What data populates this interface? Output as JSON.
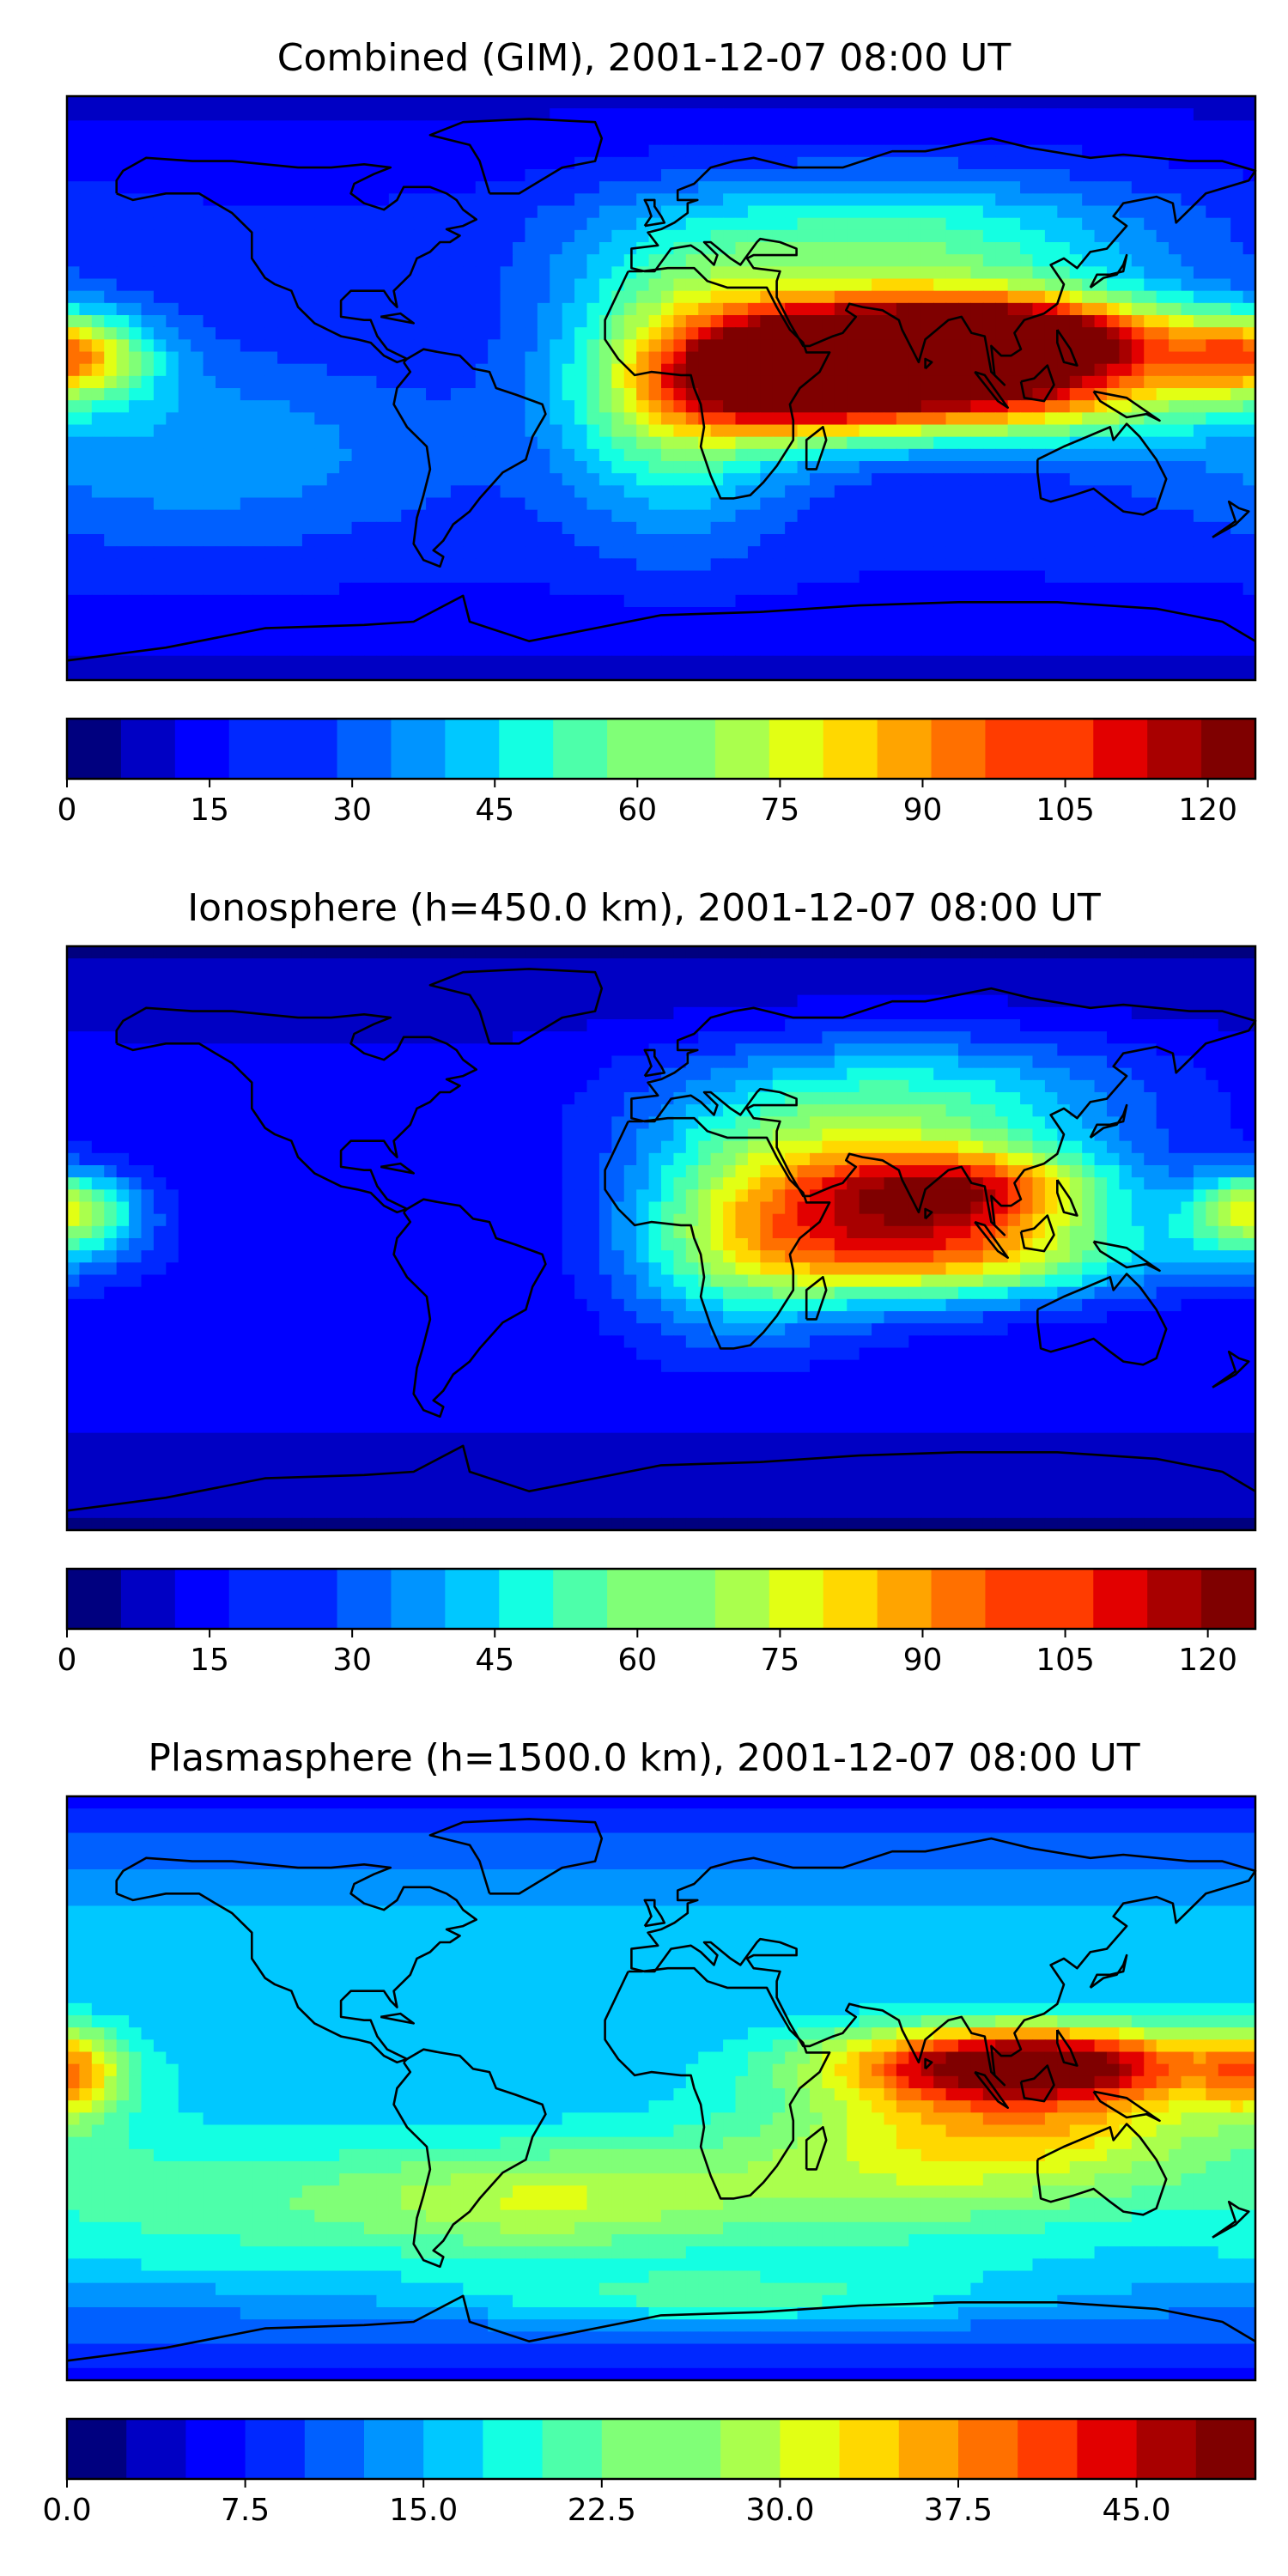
{
  "colormap": [
    "#00007f",
    "#0000c4",
    "#0000ff",
    "#0028ff",
    "#0060ff",
    "#0094ff",
    "#00c8ff",
    "#14ffe2",
    "#4dffaa",
    "#80ff77",
    "#aaff4d",
    "#e2ff14",
    "#ffd800",
    "#ffa400",
    "#ff7000",
    "#ff3c00",
    "#e20000",
    "#a80000",
    "#7f0000"
  ],
  "coastline_color": "#000000",
  "chart_data": [
    {
      "type": "heatmap",
      "title": "Combined (GIM), 2001-12-07 08:00 UT",
      "colorbar": {
        "min": 0,
        "max": 125,
        "ticks": [
          0,
          15,
          30,
          45,
          60,
          75,
          90,
          105,
          120
        ],
        "tick_labels": [
          "0",
          "15",
          "30",
          "45",
          "60",
          "75",
          "90",
          "105",
          "120"
        ],
        "levels": 22
      },
      "hotspots": [
        {
          "lon": 100,
          "lat": 16,
          "value": 125,
          "spread_lon": 38,
          "spread_lat": 9
        },
        {
          "lon": 90,
          "lat": 0,
          "value": 110,
          "spread_lon": 48,
          "spread_lat": 11
        },
        {
          "lon": 40,
          "lat": 6,
          "value": 92,
          "spread_lon": 25,
          "spread_lat": 13
        },
        {
          "lon": 5,
          "lat": 0,
          "value": 65,
          "spread_lon": 25,
          "spread_lat": 28
        },
        {
          "lon": 70,
          "lat": 40,
          "value": 60,
          "spread_lon": 55,
          "spread_lat": 18
        },
        {
          "lon": -180,
          "lat": 10,
          "value": 75,
          "spread_lon": 18,
          "spread_lat": 9
        },
        {
          "lon": -140,
          "lat": -20,
          "value": 38,
          "spread_lon": 55,
          "spread_lat": 20
        }
      ],
      "background_value": 20
    },
    {
      "type": "heatmap",
      "title": "Ionosphere  (h=450.0 km), 2001-12-07 08:00 UT",
      "colorbar": {
        "min": 0,
        "max": 125,
        "ticks": [
          0,
          15,
          30,
          45,
          60,
          75,
          90,
          105,
          120
        ],
        "tick_labels": [
          "0",
          "15",
          "30",
          "45",
          "60",
          "75",
          "90",
          "105",
          "120"
        ],
        "levels": 22
      },
      "hotspots": [
        {
          "lon": 95,
          "lat": 15,
          "value": 82,
          "spread_lon": 30,
          "spread_lat": 9
        },
        {
          "lon": 95,
          "lat": -5,
          "value": 72,
          "spread_lon": 38,
          "spread_lat": 10
        },
        {
          "lon": 55,
          "lat": 8,
          "value": 62,
          "spread_lon": 30,
          "spread_lat": 18
        },
        {
          "lon": 20,
          "lat": 0,
          "value": 50,
          "spread_lon": 25,
          "spread_lat": 22
        },
        {
          "lon": 75,
          "lat": 40,
          "value": 52,
          "spread_lon": 50,
          "spread_lat": 16
        },
        {
          "lon": -180,
          "lat": 10,
          "value": 60,
          "spread_lon": 14,
          "spread_lat": 8
        },
        {
          "lon": 180,
          "lat": 0,
          "value": 35,
          "spread_lon": 20,
          "spread_lat": 10
        }
      ],
      "background_value": 14
    },
    {
      "type": "heatmap",
      "title": "Plasmasphere (h=1500.0 km), 2001-12-07 08:00 UT",
      "colorbar": {
        "min": 0,
        "max": 50,
        "ticks": [
          0,
          7.5,
          15,
          22.5,
          30,
          37.5,
          45
        ],
        "tick_labels": [
          "0.0",
          "7.5",
          "15.0",
          "22.5",
          "30.0",
          "37.5",
          "45.0"
        ],
        "levels": 20
      },
      "hotspots": [
        {
          "lon": 110,
          "lat": 8,
          "value": 46,
          "spread_lon": 40,
          "spread_lat": 8
        },
        {
          "lon": 110,
          "lat": -8,
          "value": 32,
          "spread_lon": 45,
          "spread_lat": 14
        },
        {
          "lon": -180,
          "lat": 5,
          "value": 30,
          "spread_lon": 12,
          "spread_lat": 10
        },
        {
          "lon": -40,
          "lat": -35,
          "value": 26,
          "spread_lon": 40,
          "spread_lat": 12
        },
        {
          "lon": 60,
          "lat": -30,
          "value": 25,
          "spread_lon": 60,
          "spread_lat": 15
        },
        {
          "lon": -130,
          "lat": -35,
          "value": 22,
          "spread_lon": 50,
          "spread_lat": 15
        },
        {
          "lon": 20,
          "lat": -65,
          "value": 24,
          "spread_lon": 60,
          "spread_lat": 6
        }
      ],
      "background_value": 16
    }
  ],
  "coastlines": [
    [
      [
        -165,
        60
      ],
      [
        -160,
        58
      ],
      [
        -150,
        60
      ],
      [
        -140,
        60
      ],
      [
        -135,
        57
      ],
      [
        -130,
        54
      ],
      [
        -124,
        48
      ],
      [
        -124,
        40
      ],
      [
        -120,
        34
      ],
      [
        -117,
        32
      ],
      [
        -112,
        30
      ],
      [
        -110,
        25
      ],
      [
        -105,
        20
      ],
      [
        -97,
        16
      ],
      [
        -92,
        15
      ],
      [
        -88,
        14
      ],
      [
        -84,
        10
      ],
      [
        -80,
        8
      ],
      [
        -77,
        9
      ],
      [
        -79,
        10
      ],
      [
        -83,
        12
      ],
      [
        -86,
        16
      ],
      [
        -88,
        21
      ],
      [
        -90,
        21
      ],
      [
        -97,
        22
      ],
      [
        -97,
        27
      ],
      [
        -94,
        30
      ],
      [
        -89,
        30
      ],
      [
        -84,
        30
      ],
      [
        -82,
        27
      ],
      [
        -80,
        25
      ],
      [
        -81,
        30
      ],
      [
        -76,
        35
      ],
      [
        -74,
        40
      ],
      [
        -70,
        42
      ],
      [
        -67,
        45
      ],
      [
        -64,
        45
      ],
      [
        -61,
        47
      ],
      [
        -65,
        49
      ],
      [
        -60,
        50
      ],
      [
        -56,
        52
      ],
      [
        -60,
        55
      ],
      [
        -62,
        58
      ],
      [
        -65,
        60
      ],
      [
        -70,
        62
      ],
      [
        -78,
        62
      ],
      [
        -80,
        58
      ],
      [
        -84,
        55
      ],
      [
        -90,
        57
      ],
      [
        -94,
        60
      ],
      [
        -93,
        63
      ],
      [
        -87,
        66
      ],
      [
        -82,
        68
      ],
      [
        -90,
        69
      ],
      [
        -100,
        68
      ],
      [
        -110,
        68
      ],
      [
        -120,
        69
      ],
      [
        -130,
        70
      ],
      [
        -142,
        70
      ],
      [
        -156,
        71
      ],
      [
        -163,
        67
      ],
      [
        -165,
        64
      ],
      [
        -165,
        60
      ]
    ],
    [
      [
        -78,
        8
      ],
      [
        -76,
        5
      ],
      [
        -80,
        0
      ],
      [
        -81,
        -5
      ],
      [
        -77,
        -12
      ],
      [
        -71,
        -18
      ],
      [
        -70,
        -25
      ],
      [
        -72,
        -33
      ],
      [
        -74,
        -40
      ],
      [
        -75,
        -48
      ],
      [
        -72,
        -53
      ],
      [
        -67,
        -55
      ],
      [
        -66,
        -52
      ],
      [
        -69,
        -50
      ],
      [
        -66,
        -47
      ],
      [
        -63,
        -42
      ],
      [
        -58,
        -38
      ],
      [
        -55,
        -34
      ],
      [
        -48,
        -26
      ],
      [
        -41,
        -22
      ],
      [
        -39,
        -15
      ],
      [
        -35,
        -8
      ],
      [
        -36,
        -5
      ],
      [
        -44,
        -2
      ],
      [
        -50,
        0
      ],
      [
        -52,
        5
      ],
      [
        -57,
        6
      ],
      [
        -61,
        10
      ],
      [
        -67,
        11
      ],
      [
        -72,
        12
      ],
      [
        -77,
        9
      ],
      [
        -78,
        8
      ]
    ],
    [
      [
        -10,
        36
      ],
      [
        -17,
        21
      ],
      [
        -17,
        15
      ],
      [
        -13,
        9
      ],
      [
        -8,
        4
      ],
      [
        -3,
        5
      ],
      [
        6,
        4
      ],
      [
        9,
        4
      ],
      [
        10,
        0
      ],
      [
        12,
        -5
      ],
      [
        13,
        -12
      ],
      [
        12,
        -18
      ],
      [
        15,
        -27
      ],
      [
        18,
        -34
      ],
      [
        22,
        -34
      ],
      [
        27,
        -33
      ],
      [
        31,
        -29
      ],
      [
        35,
        -24
      ],
      [
        40,
        -16
      ],
      [
        40,
        -10
      ],
      [
        39,
        -5
      ],
      [
        42,
        0
      ],
      [
        48,
        5
      ],
      [
        51,
        11
      ],
      [
        44,
        11
      ],
      [
        43,
        14
      ],
      [
        39,
        18
      ],
      [
        35,
        25
      ],
      [
        32,
        31
      ],
      [
        28,
        31
      ],
      [
        20,
        31
      ],
      [
        14,
        33
      ],
      [
        10,
        37
      ],
      [
        2,
        37
      ],
      [
        -6,
        36
      ],
      [
        -10,
        36
      ]
    ],
    [
      [
        -9,
        39
      ],
      [
        -9,
        43
      ],
      [
        -1,
        44
      ],
      [
        -4,
        48
      ],
      [
        0,
        49
      ],
      [
        4,
        51
      ],
      [
        8,
        54
      ],
      [
        8,
        57
      ],
      [
        11,
        58
      ],
      [
        5,
        58
      ],
      [
        5,
        61
      ],
      [
        10,
        63
      ],
      [
        15,
        68
      ],
      [
        22,
        70
      ],
      [
        28,
        71
      ],
      [
        40,
        68
      ],
      [
        44,
        68
      ],
      [
        55,
        68
      ],
      [
        70,
        73
      ],
      [
        80,
        73
      ],
      [
        100,
        77
      ],
      [
        112,
        74
      ],
      [
        130,
        71
      ],
      [
        140,
        72
      ],
      [
        160,
        70
      ],
      [
        170,
        70
      ],
      [
        180,
        67
      ],
      [
        178,
        64
      ],
      [
        165,
        60
      ],
      [
        160,
        55
      ],
      [
        156,
        51
      ],
      [
        155,
        57
      ],
      [
        150,
        59
      ],
      [
        140,
        57
      ],
      [
        137,
        53
      ],
      [
        141,
        50
      ],
      [
        135,
        43
      ],
      [
        130,
        42
      ],
      [
        126,
        37
      ],
      [
        122,
        40
      ],
      [
        118,
        38
      ],
      [
        122,
        32
      ],
      [
        120,
        26
      ],
      [
        116,
        23
      ],
      [
        110,
        21
      ],
      [
        107,
        17
      ],
      [
        109,
        12
      ],
      [
        106,
        10
      ],
      [
        103,
        10
      ],
      [
        100,
        13
      ],
      [
        101,
        4
      ],
      [
        104,
        1
      ],
      [
        100,
        5
      ],
      [
        98,
        16
      ],
      [
        94,
        17
      ],
      [
        91,
        22
      ],
      [
        87,
        21
      ],
      [
        80,
        15
      ],
      [
        78,
        8
      ],
      [
        73,
        18
      ],
      [
        72,
        21
      ],
      [
        67,
        24
      ],
      [
        61,
        25
      ],
      [
        57,
        26
      ],
      [
        56,
        24
      ],
      [
        59,
        22
      ],
      [
        55,
        17
      ],
      [
        52,
        16
      ],
      [
        45,
        13
      ],
      [
        43,
        13
      ],
      [
        39,
        20
      ],
      [
        35,
        28
      ],
      [
        35,
        33
      ],
      [
        36,
        36
      ],
      [
        28,
        37
      ],
      [
        26,
        40
      ],
      [
        28,
        41
      ],
      [
        29,
        41
      ],
      [
        41,
        41
      ],
      [
        41,
        43
      ],
      [
        36,
        45
      ],
      [
        30,
        46
      ],
      [
        29,
        45
      ],
      [
        24,
        38
      ],
      [
        21,
        40
      ],
      [
        15,
        45
      ],
      [
        13,
        45
      ],
      [
        17,
        41
      ],
      [
        16,
        38
      ],
      [
        12,
        42
      ],
      [
        9,
        44
      ],
      [
        3,
        43
      ],
      [
        -2,
        36
      ],
      [
        -5,
        36
      ],
      [
        -9,
        37
      ],
      [
        -9,
        39
      ]
    ],
    [
      [
        114,
        -22
      ],
      [
        122,
        -18
      ],
      [
        129,
        -15
      ],
      [
        136,
        -12
      ],
      [
        137,
        -16
      ],
      [
        141,
        -11
      ],
      [
        145,
        -15
      ],
      [
        150,
        -22
      ],
      [
        153,
        -28
      ],
      [
        150,
        -37
      ],
      [
        146,
        -39
      ],
      [
        140,
        -38
      ],
      [
        136,
        -35
      ],
      [
        131,
        -31
      ],
      [
        125,
        -33
      ],
      [
        118,
        -35
      ],
      [
        115,
        -34
      ],
      [
        114,
        -26
      ],
      [
        114,
        -22
      ]
    ],
    [
      [
        -5,
        50
      ],
      [
        -3,
        53
      ],
      [
        -4,
        56
      ],
      [
        -5,
        58
      ],
      [
        -2,
        58
      ],
      [
        -2,
        56
      ],
      [
        0,
        53
      ],
      [
        1,
        51
      ],
      [
        -5,
        50
      ]
    ],
    [
      [
        -52,
        60
      ],
      [
        -43,
        60
      ],
      [
        -30,
        68
      ],
      [
        -20,
        70
      ],
      [
        -18,
        77
      ],
      [
        -20,
        82
      ],
      [
        -40,
        83
      ],
      [
        -60,
        82
      ],
      [
        -70,
        78
      ],
      [
        -58,
        75
      ],
      [
        -55,
        70
      ],
      [
        -52,
        60
      ]
    ],
    [
      [
        95,
        5
      ],
      [
        98,
        4
      ],
      [
        105,
        -6
      ],
      [
        102,
        -4
      ],
      [
        95,
        5
      ]
    ],
    [
      [
        109,
        2
      ],
      [
        110,
        -3
      ],
      [
        116,
        -4
      ],
      [
        119,
        1
      ],
      [
        117,
        7
      ],
      [
        113,
        3
      ],
      [
        109,
        2
      ]
    ],
    [
      [
        131,
        -1
      ],
      [
        141,
        -3
      ],
      [
        151,
        -10
      ],
      [
        147,
        -8
      ],
      [
        141,
        -9
      ],
      [
        133,
        -4
      ],
      [
        131,
        -1
      ]
    ],
    [
      [
        130,
        31
      ],
      [
        132,
        35
      ],
      [
        136,
        35
      ],
      [
        140,
        36
      ],
      [
        141,
        41
      ],
      [
        140,
        38
      ],
      [
        138,
        35
      ],
      [
        134,
        34
      ],
      [
        130,
        31
      ]
    ],
    [
      [
        -180,
        -84
      ],
      [
        -150,
        -80
      ],
      [
        -120,
        -74
      ],
      [
        -90,
        -73
      ],
      [
        -75,
        -72
      ],
      [
        -60,
        -64
      ],
      [
        -58,
        -72
      ],
      [
        -40,
        -78
      ],
      [
        -20,
        -74
      ],
      [
        0,
        -70
      ],
      [
        30,
        -69
      ],
      [
        60,
        -67
      ],
      [
        90,
        -66
      ],
      [
        120,
        -66
      ],
      [
        150,
        -68
      ],
      [
        170,
        -72
      ],
      [
        180,
        -78
      ]
    ],
    [
      [
        44,
        -25
      ],
      [
        47,
        -25
      ],
      [
        50,
        -16
      ],
      [
        49,
        -12
      ],
      [
        44,
        -16
      ],
      [
        44,
        -25
      ]
    ],
    [
      [
        80,
        6
      ],
      [
        82,
        8
      ],
      [
        80,
        9
      ],
      [
        80,
        6
      ]
    ],
    [
      [
        -85,
        22
      ],
      [
        -79,
        23
      ],
      [
        -75,
        20
      ],
      [
        -80,
        21
      ],
      [
        -85,
        22
      ]
    ],
    [
      [
        167,
        -46
      ],
      [
        174,
        -41
      ],
      [
        172,
        -35
      ],
      [
        175,
        -37
      ],
      [
        178,
        -38
      ],
      [
        174,
        -42
      ],
      [
        167,
        -46
      ]
    ],
    [
      [
        120,
        18
      ],
      [
        124,
        12
      ],
      [
        126,
        7
      ],
      [
        122,
        8
      ],
      [
        120,
        14
      ],
      [
        120,
        18
      ]
    ]
  ]
}
